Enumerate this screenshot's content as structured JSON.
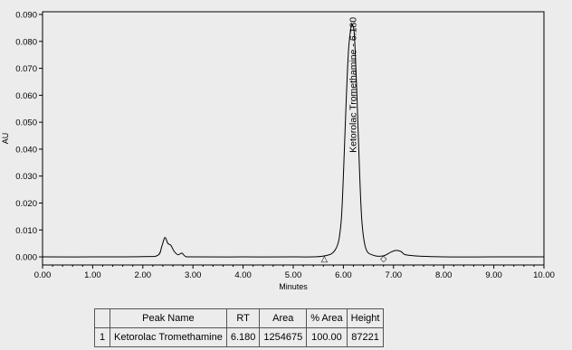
{
  "chart_data": {
    "type": "line",
    "xlabel": "Minutes",
    "ylabel": "AU",
    "xlim": [
      0,
      10
    ],
    "ylim": [
      -0.003,
      0.091
    ],
    "x_ticks": [
      "0.00",
      "1.00",
      "2.00",
      "3.00",
      "4.00",
      "5.00",
      "6.00",
      "7.00",
      "8.00",
      "9.00",
      "10.00"
    ],
    "y_ticks": [
      "0.000",
      "0.010",
      "0.020",
      "0.030",
      "0.040",
      "0.050",
      "0.060",
      "0.070",
      "0.080",
      "0.090"
    ],
    "grid": false,
    "series": [
      {
        "x": [
          0.0,
          1.0,
          2.0,
          2.3,
          2.38,
          2.44,
          2.5,
          2.56,
          2.62,
          2.7,
          2.78,
          2.85,
          3.0,
          4.0,
          5.0,
          5.6,
          5.85,
          5.95,
          6.0,
          6.05,
          6.1,
          6.15,
          6.18,
          6.22,
          6.27,
          6.32,
          6.37,
          6.45,
          6.6,
          6.8,
          6.95,
          7.05,
          7.15,
          7.3,
          8.0,
          9.0,
          10.0
        ],
        "y": [
          0.0,
          0.0,
          0.0001,
          0.0006,
          0.004,
          0.0072,
          0.005,
          0.0043,
          0.0022,
          0.0008,
          0.0014,
          0.0002,
          0.0,
          0.0,
          0.0,
          0.0003,
          0.003,
          0.012,
          0.03,
          0.055,
          0.076,
          0.085,
          0.086,
          0.082,
          0.06,
          0.033,
          0.013,
          0.003,
          0.0006,
          0.0004,
          0.0018,
          0.0024,
          0.002,
          0.0006,
          0.0,
          0.0,
          0.0
        ]
      }
    ],
    "peak_annotation": {
      "x": 6.18,
      "text": "Ketorolac Tromethamine - 6.180"
    },
    "integration_marks": [
      {
        "x": 5.62,
        "symbol": "△"
      },
      {
        "x": 6.8,
        "symbol": "◇"
      }
    ]
  },
  "results_table": {
    "headers": [
      "",
      "Peak Name",
      "RT",
      "Area",
      "% Area",
      "Height"
    ],
    "rows": [
      [
        "1",
        "Ketorolac Tromethamine",
        "6.180",
        "1254675",
        "100.00",
        "87221"
      ]
    ]
  }
}
